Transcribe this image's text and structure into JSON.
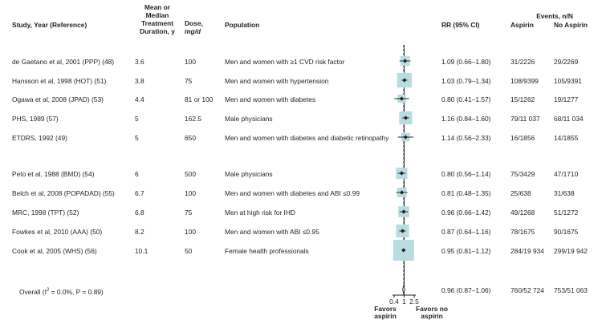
{
  "headers": {
    "study": "Study, Year (Reference)",
    "duration": [
      "Mean or",
      "Median",
      "Treatment",
      "Duration, y"
    ],
    "dose": [
      "Dose,",
      "mg/d"
    ],
    "population": "Population",
    "rr": "RR (95% CI)",
    "events": "Events, n/N",
    "aspirin": "Aspirin",
    "no_aspirin": "No Aspirin"
  },
  "rows": [
    {
      "study": "de Gaetano et al, 2001 (PPP) (48)",
      "duration": "3.6",
      "dose": "100",
      "population": "Men and women with ≥1 CVD risk factor",
      "rr_text": "1.09 (0.66–1.80)",
      "aspirin": "31/2226",
      "no_aspirin": "29/2269"
    },
    {
      "study": "Hansson et al, 1998 (HOT) (51)",
      "duration": "3.8",
      "dose": "75",
      "population": "Men and women with hypertension",
      "rr_text": "1.03 (0.79–1.34)",
      "aspirin": "108/9399",
      "no_aspirin": "105/9391"
    },
    {
      "study": "Ogawa et al, 2008 (JPAD) (53)",
      "duration": "4.4",
      "dose": "81 or 100",
      "population": "Men and women with diabetes",
      "rr_text": "0.80 (0.41–1.57)",
      "aspirin": "15/1262",
      "no_aspirin": "19/1277"
    },
    {
      "study": "PHS, 1989 (57)",
      "duration": "5",
      "dose": "162.5",
      "population": "Male physicians",
      "rr_text": "1.16 (0.84–1.60)",
      "aspirin": "79/11 037",
      "no_aspirin": "68/11 034"
    },
    {
      "study": "ETDRS, 1992 (49)",
      "duration": "5",
      "dose": "650",
      "population": "Men and women with diabetes and diabetic retinopathy",
      "rr_text": "1.14 (0.56–2.33)",
      "aspirin": "16/1856",
      "no_aspirin": "14/1855"
    },
    {
      "study": "Peto et al, 1988 (BMD) (54)",
      "duration": "6",
      "dose": "500",
      "population": "Male physicians",
      "rr_text": "0.80 (0.56–1.14)",
      "aspirin": "75/3429",
      "no_aspirin": "47/1710"
    },
    {
      "study": "Belch et al, 2008 (POPADAD) (55)",
      "duration": "6.7",
      "dose": "100",
      "population": "Men and women with diabetes and ABI ≤0.99",
      "rr_text": "0.81 (0.48–1.35)",
      "aspirin": "25/638",
      "no_aspirin": "31/638"
    },
    {
      "study": "MRC, 1998 (TPT) (52)",
      "duration": "6.8",
      "dose": "75",
      "population": "Men at high risk for IHD",
      "rr_text": "0.96 (0.66–1.42)",
      "aspirin": "49/1268",
      "no_aspirin": "51/1272"
    },
    {
      "study": "Fowkes et al, 2010 (AAA) (50)",
      "duration": "8.2",
      "dose": "100",
      "population": "Men and women with ABI ≤0.95",
      "rr_text": "0.87 (0.64–1.16)",
      "aspirin": "78/1675",
      "no_aspirin": "90/1675"
    },
    {
      "study": "Cook et al, 2005 (WHS) (56)",
      "duration": "10.1",
      "dose": "50",
      "population": "Female health professionals",
      "rr_text": "0.95 (0.81–1.12)",
      "aspirin": "284/19 934",
      "no_aspirin": "299/19 942"
    }
  ],
  "overall": {
    "label_pre": "Overall (I",
    "sup": "2",
    "label_post": " = 0.0%, P = 0.89)",
    "rr_text": "0.96 (0.87–1.06)",
    "aspirin": "760/52 724",
    "no_aspirin": "753/51 063"
  },
  "axis_labels": {
    "favors_aspirin": [
      "Favors",
      "aspirin"
    ],
    "favors_no_aspirin": [
      "Favors no",
      "aspirin"
    ]
  },
  "chart_data": {
    "type": "forest",
    "scale": "log",
    "xlim": [
      0.4,
      2.5
    ],
    "ticks": [
      "0.4",
      "1",
      "2.5"
    ],
    "null_value": 1,
    "pooled_estimate": 0.96,
    "colors": {
      "box": "#b9dce1",
      "line": "#231f20"
    },
    "estimates": [
      {
        "rr": 1.09,
        "lo": 0.66,
        "hi": 1.8,
        "weight": 0.0251
      },
      {
        "rr": 1.03,
        "lo": 0.79,
        "hi": 1.34,
        "weight": 0.1099
      },
      {
        "rr": 0.8,
        "lo": 0.41,
        "hi": 1.57,
        "weight": 0.0142
      },
      {
        "rr": 1.16,
        "lo": 0.84,
        "hi": 1.6,
        "weight": 0.0769
      },
      {
        "rr": 1.14,
        "lo": 0.56,
        "hi": 2.33,
        "weight": 0.0152
      },
      {
        "rr": 0.8,
        "lo": 0.56,
        "hi": 1.14,
        "weight": 0.048
      },
      {
        "rr": 0.81,
        "lo": 0.48,
        "hi": 1.35,
        "weight": 0.0256
      },
      {
        "rr": 0.96,
        "lo": 0.66,
        "hi": 1.42,
        "weight": 0.0413
      },
      {
        "rr": 0.87,
        "lo": 0.64,
        "hi": 1.16,
        "weight": 0.0749
      },
      {
        "rr": 0.95,
        "lo": 0.81,
        "hi": 1.12,
        "weight": 0.2917
      }
    ],
    "overall": {
      "rr": 0.96,
      "lo": 0.87,
      "hi": 1.06
    }
  }
}
